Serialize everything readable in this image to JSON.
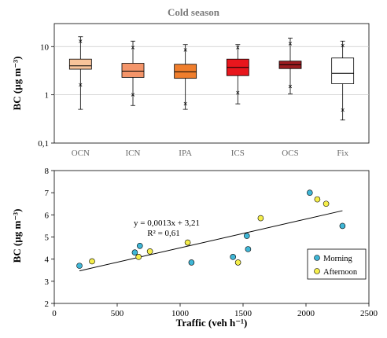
{
  "chart_data": [
    {
      "type": "box",
      "title": "Cold season",
      "ylabel": "BC (µg m⁻³)",
      "yscale": "log",
      "ylim": [
        0.1,
        30
      ],
      "yticks": [
        0.1,
        1,
        10
      ],
      "ytick_labels": [
        "0,1",
        "1",
        "10"
      ],
      "grid": true,
      "categories": [
        "OCN",
        "ICN",
        "IPA",
        "ICS",
        "OCS",
        "Fix"
      ],
      "boxes": [
        {
          "label": "OCN",
          "whisker_low": 0.5,
          "q1": 3.4,
          "median": 4.0,
          "q3": 5.5,
          "whisker_high": 16,
          "p_low": 1.6,
          "p_high": 13,
          "color": "#f9c49a"
        },
        {
          "label": "ICN",
          "whisker_low": 0.6,
          "q1": 2.3,
          "median": 3.1,
          "q3": 4.5,
          "whisker_high": 13,
          "p_low": 1.0,
          "p_high": 9.5,
          "color": "#f4956a"
        },
        {
          "label": "IPA",
          "whisker_low": 0.5,
          "q1": 2.2,
          "median": 3.0,
          "q3": 4.3,
          "whisker_high": 11,
          "p_low": 0.65,
          "p_high": 8.5,
          "color": "#f07e2c"
        },
        {
          "label": "ICS",
          "whisker_low": 0.65,
          "q1": 2.5,
          "median": 3.7,
          "q3": 5.5,
          "whisker_high": 11,
          "p_low": 1.1,
          "p_high": 9.5,
          "color": "#e8161d"
        },
        {
          "label": "OCS",
          "whisker_low": 1.05,
          "q1": 3.5,
          "median": 4.2,
          "q3": 5.0,
          "whisker_high": 15,
          "p_low": 1.5,
          "p_high": 11.5,
          "color": "#9a1b20"
        },
        {
          "label": "Fix",
          "whisker_low": 0.3,
          "q1": 1.7,
          "median": 2.8,
          "q3": 5.8,
          "whisker_high": 13,
          "p_low": 0.48,
          "p_high": 10.5,
          "color": "#ffffff"
        }
      ]
    },
    {
      "type": "scatter",
      "xlabel": "Traffic (veh h⁻¹)",
      "ylabel": "BC (µg m⁻³)",
      "xlim": [
        0,
        2500
      ],
      "ylim": [
        2,
        8
      ],
      "xticks": [
        0,
        500,
        1000,
        1500,
        2000,
        2500
      ],
      "yticks": [
        2,
        3,
        4,
        5,
        6,
        7,
        8
      ],
      "legend_position": "right",
      "series": [
        {
          "name": "Morning",
          "color": "#3fb6d6",
          "points": [
            [
              200,
              3.7
            ],
            [
              640,
              4.3
            ],
            [
              680,
              4.6
            ],
            [
              1090,
              3.85
            ],
            [
              1420,
              4.1
            ],
            [
              1530,
              5.05
            ],
            [
              1540,
              4.45
            ],
            [
              2030,
              7.0
            ],
            [
              2290,
              5.5
            ]
          ]
        },
        {
          "name": "Afternoon",
          "color": "#f5ee4a",
          "points": [
            [
              300,
              3.9
            ],
            [
              670,
              4.1
            ],
            [
              760,
              4.35
            ],
            [
              1060,
              4.75
            ],
            [
              1460,
              3.85
            ],
            [
              1640,
              5.85
            ],
            [
              2090,
              6.7
            ],
            [
              2160,
              6.5
            ]
          ]
        }
      ],
      "trendline": {
        "equation": "y = 0,0013x + 3,21",
        "r2": "R² = 0,61",
        "slope": 0.0013,
        "intercept": 3.21,
        "x_range": [
          200,
          2290
        ]
      }
    }
  ]
}
